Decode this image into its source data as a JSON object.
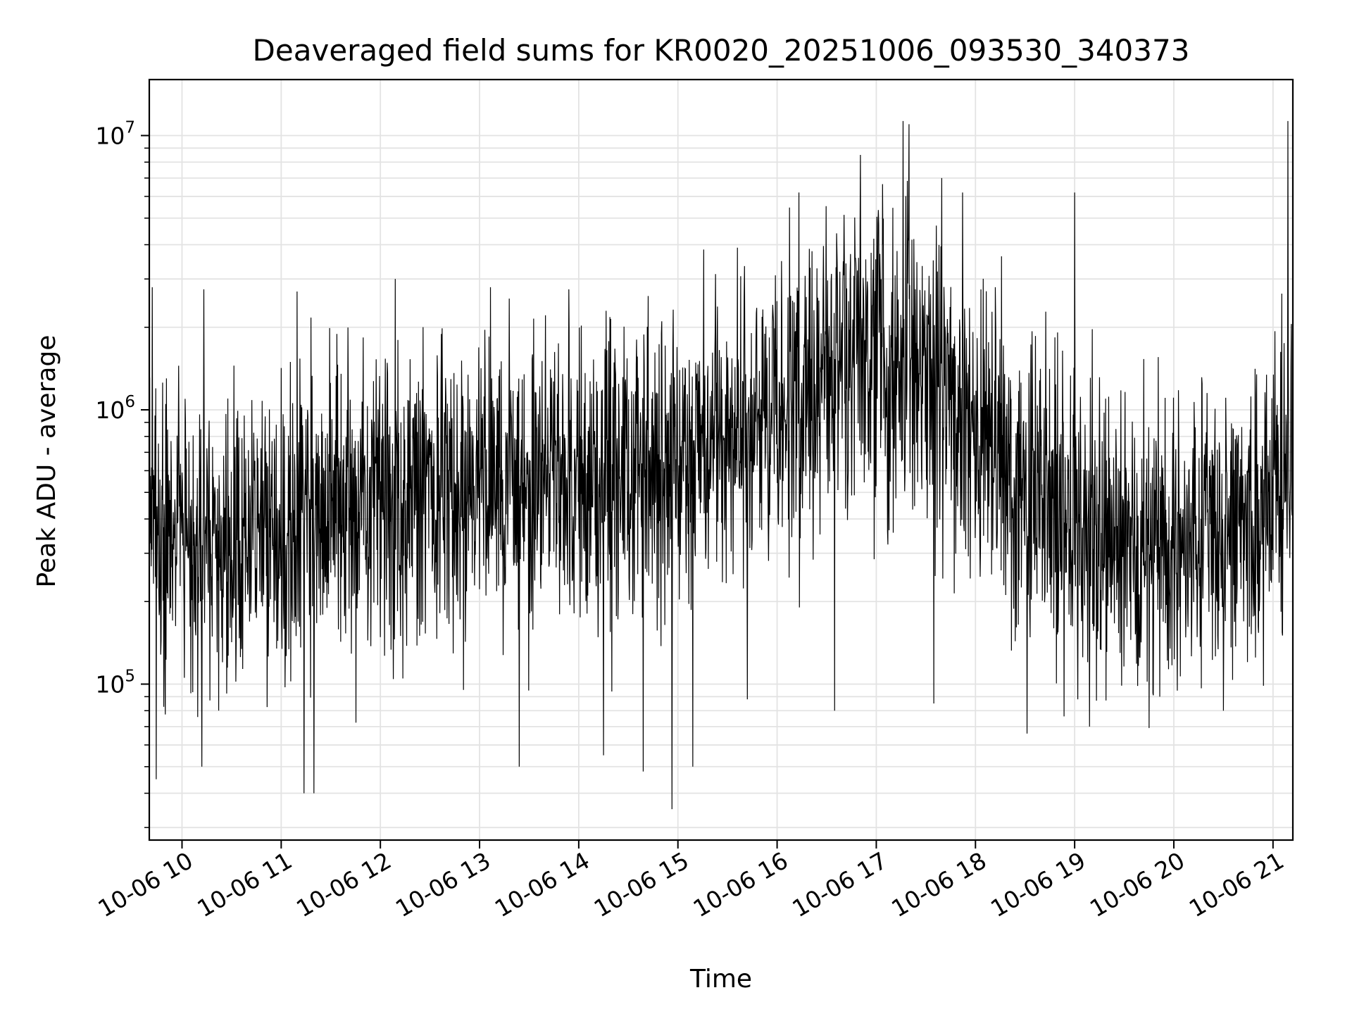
{
  "chart_data": {
    "type": "line",
    "title": "Deaveraged field sums for KR0020_20251006_093530_340373",
    "xlabel": "Time",
    "ylabel": "Peak ADU - average",
    "yscale": "log",
    "ylim": [
      27000,
      16000000
    ],
    "xlim_hours": [
      9.67,
      21.2
    ],
    "grid": true,
    "line_color": "#000000",
    "x_ticks": [
      {
        "hour": 10,
        "label": "10-06 10"
      },
      {
        "hour": 11,
        "label": "10-06 11"
      },
      {
        "hour": 12,
        "label": "10-06 12"
      },
      {
        "hour": 13,
        "label": "10-06 13"
      },
      {
        "hour": 14,
        "label": "10-06 14"
      },
      {
        "hour": 15,
        "label": "10-06 15"
      },
      {
        "hour": 16,
        "label": "10-06 16"
      },
      {
        "hour": 17,
        "label": "10-06 17"
      },
      {
        "hour": 18,
        "label": "10-06 18"
      },
      {
        "hour": 19,
        "label": "10-06 19"
      },
      {
        "hour": 20,
        "label": "10-06 20"
      },
      {
        "hour": 21,
        "label": "10-06 21"
      }
    ],
    "y_ticks": [
      {
        "value": 100000,
        "base": "10",
        "exp": "5"
      },
      {
        "value": 1000000,
        "base": "10",
        "exp": "6"
      },
      {
        "value": 10000000,
        "base": "10",
        "exp": "7"
      }
    ],
    "series": [
      {
        "name": "deaveraged field sums",
        "trend": {
          "hours": [
            9.67,
            10.0,
            10.5,
            11.0,
            11.5,
            12.0,
            12.5,
            13.0,
            13.5,
            14.0,
            14.5,
            15.0,
            15.5,
            16.0,
            16.5,
            17.0,
            17.5,
            18.0,
            18.5,
            19.0,
            19.5,
            20.0,
            20.5,
            21.0,
            21.2
          ],
          "median": [
            400000,
            350000,
            330000,
            380000,
            420000,
            450000,
            520000,
            550000,
            520000,
            560000,
            600000,
            650000,
            800000,
            1000000,
            1300000,
            1500000,
            1400000,
            800000,
            500000,
            380000,
            330000,
            330000,
            330000,
            500000,
            600000
          ]
        },
        "spikes": [
          {
            "hour": 9.7,
            "value": 2800000
          },
          {
            "hour": 10.22,
            "value": 2750000
          },
          {
            "hour": 11.16,
            "value": 2700000
          },
          {
            "hour": 12.15,
            "value": 3000000
          },
          {
            "hour": 13.11,
            "value": 2800000
          },
          {
            "hour": 13.9,
            "value": 2750000
          },
          {
            "hour": 14.7,
            "value": 2600000
          },
          {
            "hour": 15.6,
            "value": 3900000
          },
          {
            "hour": 16.22,
            "value": 6200000
          },
          {
            "hour": 16.6,
            "value": 4400000
          },
          {
            "hour": 16.84,
            "value": 8500000
          },
          {
            "hour": 17.27,
            "value": 11300000
          },
          {
            "hour": 17.33,
            "value": 11000000
          },
          {
            "hour": 17.66,
            "value": 7000000
          },
          {
            "hour": 17.87,
            "value": 6200000
          },
          {
            "hour": 18.2,
            "value": 2800000
          },
          {
            "hour": 19.0,
            "value": 6200000
          },
          {
            "hour": 21.15,
            "value": 11300000
          }
        ],
        "dips": [
          {
            "hour": 9.74,
            "value": 45000
          },
          {
            "hour": 10.2,
            "value": 50000
          },
          {
            "hour": 11.23,
            "value": 40000
          },
          {
            "hour": 11.33,
            "value": 40000
          },
          {
            "hour": 13.4,
            "value": 50000
          },
          {
            "hour": 14.25,
            "value": 55000
          },
          {
            "hour": 14.65,
            "value": 48000
          },
          {
            "hour": 14.94,
            "value": 35000
          },
          {
            "hour": 15.15,
            "value": 50000
          },
          {
            "hour": 15.7,
            "value": 88000
          },
          {
            "hour": 16.58,
            "value": 80000
          },
          {
            "hour": 17.58,
            "value": 85000
          },
          {
            "hour": 18.52,
            "value": 66000
          },
          {
            "hour": 19.15,
            "value": 70000
          },
          {
            "hour": 20.5,
            "value": 80000
          }
        ],
        "spread_decades": 0.5,
        "sample_count": 3000
      }
    ]
  }
}
